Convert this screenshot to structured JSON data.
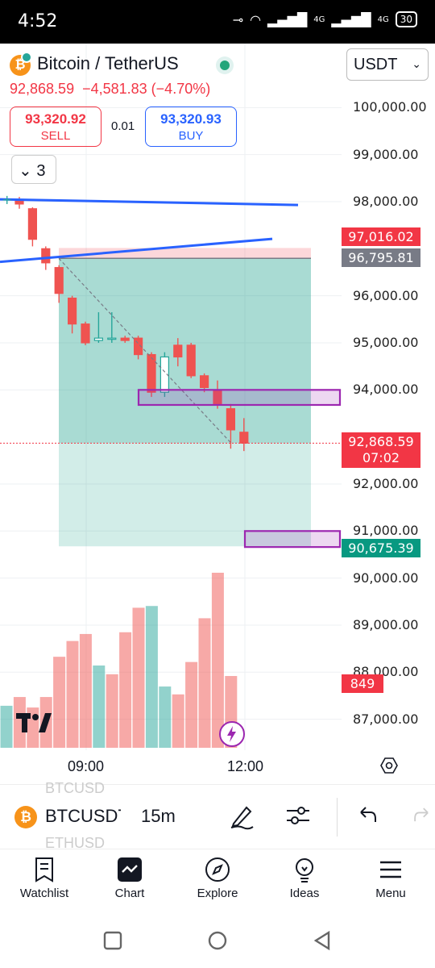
{
  "status": {
    "time": "4:52",
    "net1": "4G",
    "net2": "4G",
    "battery": "30"
  },
  "header": {
    "title": "Bitcoin / TetherUS",
    "quote_currency": "USDT",
    "last_price": "92,868.59",
    "change": "−4,581.83 (−4.70%)",
    "sell_price": "93,320.92",
    "sell_label": "SELL",
    "spread": "0.01",
    "buy_price": "93,320.93",
    "buy_label": "BUY",
    "collapse_count": "3"
  },
  "price_axis": {
    "labels": [
      "100,000.00",
      "99,000.00",
      "98,000.00",
      "96,000.00",
      "95,000.00",
      "94,000.00",
      "92,000.00",
      "91,000.00",
      "90,000.00",
      "89,000.00",
      "88,000.00",
      "87,000.00"
    ],
    "tag_top": "97,016.02",
    "tag_entry": "96,795.81",
    "tag_last": "92,868.59",
    "tag_countdown": "07:02",
    "tag_bottom": "90,675.39",
    "tag_volume": "849"
  },
  "time_axis": {
    "labels": [
      "09:00",
      "12:00"
    ]
  },
  "colors": {
    "up": "#26a69a",
    "down": "#ef5350",
    "accent_blue": "#2962ff",
    "purple": "#9c27b0"
  },
  "chart_data": {
    "type": "candlestick",
    "candles": [
      {
        "o": 98050,
        "h": 98100,
        "l": 97850,
        "c": 97950
      },
      {
        "o": 97850,
        "h": 97880,
        "l": 97050,
        "c": 97200
      },
      {
        "o": 97000,
        "h": 97050,
        "l": 96550,
        "c": 96700
      },
      {
        "o": 96600,
        "h": 96650,
        "l": 95850,
        "c": 96050
      },
      {
        "o": 95950,
        "h": 96000,
        "l": 95200,
        "c": 95400
      },
      {
        "o": 95400,
        "h": 95450,
        "l": 94950,
        "c": 95000
      },
      {
        "o": 95050,
        "h": 95650,
        "l": 95000,
        "c": 95100
      },
      {
        "o": 95100,
        "h": 95650,
        "l": 95000,
        "c": 95100
      },
      {
        "o": 95100,
        "h": 95150,
        "l": 95000,
        "c": 95050
      },
      {
        "o": 95100,
        "h": 95150,
        "l": 94650,
        "c": 94750
      },
      {
        "o": 94750,
        "h": 94800,
        "l": 93850,
        "c": 93950
      },
      {
        "o": 93950,
        "h": 94800,
        "l": 93850,
        "c": 94700
      },
      {
        "o": 94950,
        "h": 95100,
        "l": 94500,
        "c": 94700
      },
      {
        "o": 94950,
        "h": 95000,
        "l": 94250,
        "c": 94300
      },
      {
        "o": 94300,
        "h": 94350,
        "l": 93950,
        "c": 94050
      },
      {
        "o": 94000,
        "h": 94200,
        "l": 93600,
        "c": 93700
      },
      {
        "o": 93600,
        "h": 93700,
        "l": 92750,
        "c": 93150
      },
      {
        "o": 93100,
        "h": 93400,
        "l": 92700,
        "c": 92869
      }
    ],
    "volume": [
      {
        "v": 240,
        "up": true
      },
      {
        "v": 290,
        "up": false
      },
      {
        "v": 230,
        "up": false
      },
      {
        "v": 290,
        "up": false
      },
      {
        "v": 520,
        "up": false
      },
      {
        "v": 610,
        "up": false
      },
      {
        "v": 650,
        "up": false
      },
      {
        "v": 470,
        "up": true
      },
      {
        "v": 420,
        "up": false
      },
      {
        "v": 660,
        "up": false
      },
      {
        "v": 800,
        "up": false
      },
      {
        "v": 810,
        "up": true
      },
      {
        "v": 350,
        "up": true
      },
      {
        "v": 305,
        "up": false
      },
      {
        "v": 490,
        "up": false
      },
      {
        "v": 740,
        "up": false
      },
      {
        "v": 1000,
        "up": false
      },
      {
        "v": 410,
        "up": false
      }
    ]
  },
  "toolbar": {
    "symbol": "BTCUSDT",
    "interval": "15m",
    "ghost_above": "BTCUSD",
    "ghost_below": "ETHUSD"
  },
  "nav": [
    {
      "label": "Watchlist",
      "icon": "watchlist-icon"
    },
    {
      "label": "Chart",
      "icon": "chart-icon"
    },
    {
      "label": "Explore",
      "icon": "compass-icon"
    },
    {
      "label": "Ideas",
      "icon": "lightbulb-icon"
    },
    {
      "label": "Menu",
      "icon": "hamburger-icon"
    }
  ]
}
